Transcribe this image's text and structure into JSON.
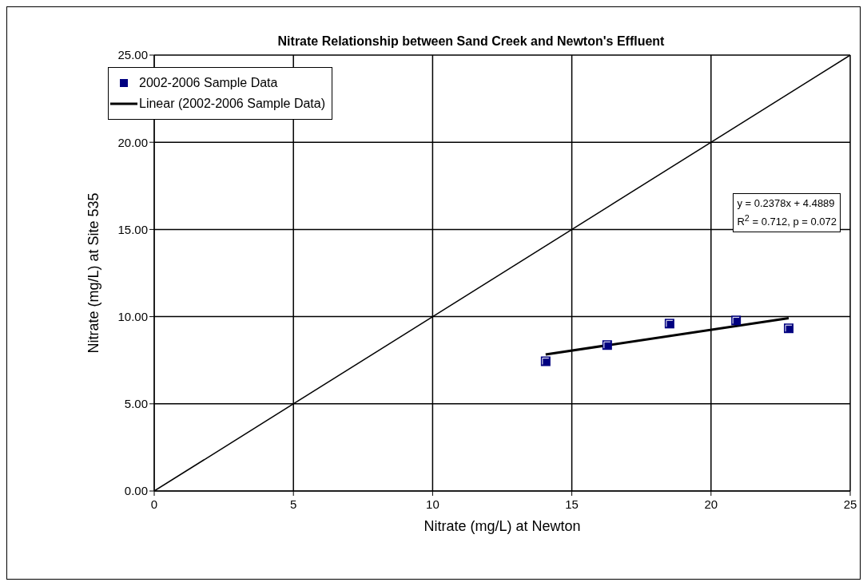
{
  "chart_data": {
    "type": "scatter",
    "title": "Nitrate Relationship between Sand Creek and Newton's Effluent",
    "xlabel": "Nitrate  (mg/L) at Newton",
    "ylabel": "Nitrate (mg/L) at Site 535",
    "series": [
      {
        "name": "2002-2006 Sample Data",
        "marker": "square",
        "color": "#000080",
        "x": [
          14.06,
          16.27,
          18.51,
          20.9,
          22.79
        ],
        "values": [
          7.44,
          8.37,
          9.6,
          9.78,
          9.33
        ]
      },
      {
        "name": "Linear (2002-2006 Sample Data)",
        "type": "line",
        "color": "#000000",
        "x": [
          14.06,
          22.79
        ],
        "values": [
          7.83,
          9.91
        ]
      },
      {
        "type": "line",
        "color": "#000000",
        "x": [
          0,
          25
        ],
        "values": [
          0,
          25
        ]
      }
    ],
    "xlim": [
      0,
      25
    ],
    "xticks": [
      0,
      5,
      10,
      15,
      20,
      25
    ],
    "ylim": [
      0,
      25
    ],
    "yticks": [
      {
        "value": 0,
        "label": "0.00"
      },
      {
        "value": 5,
        "label": "5.00"
      },
      {
        "value": 10,
        "label": "10.00"
      },
      {
        "value": 15,
        "label": "15.00"
      },
      {
        "value": 20,
        "label": "20.00"
      },
      {
        "value": 25,
        "label": "25.00"
      }
    ],
    "annotations": [
      "y = 0.2378x + 4.4889",
      "R$^{2}$ = 0.712,  p = 0.072"
    ],
    "grid": true,
    "legend": "top left"
  }
}
